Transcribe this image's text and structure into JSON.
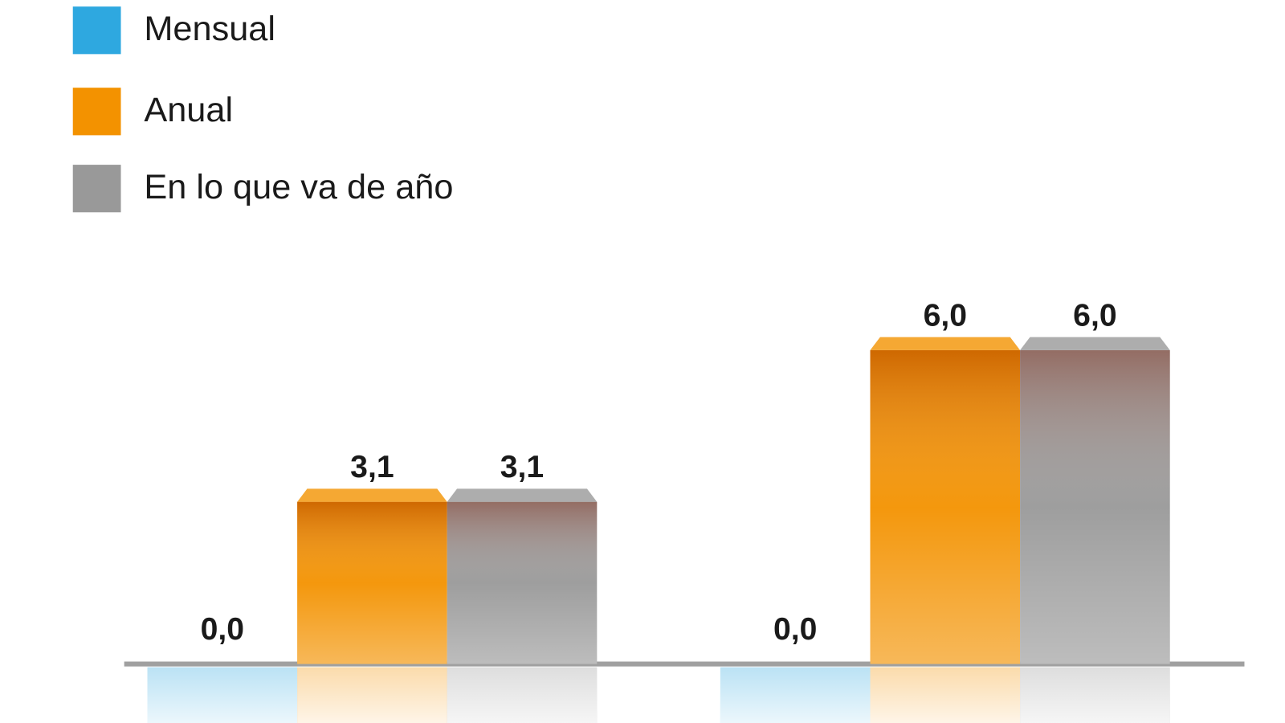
{
  "chart_data": {
    "type": "bar",
    "categories": [
      null,
      null
    ],
    "series": [
      {
        "name": "Mensual",
        "color": "#2ea8e0",
        "values": [
          0.0,
          0.0
        ],
        "value_labels": [
          "0,0",
          "0,0"
        ]
      },
      {
        "name": "Anual",
        "color": "#f39200",
        "values": [
          3.1,
          6.0
        ],
        "value_labels": [
          "3,1",
          "6,0"
        ]
      },
      {
        "name": "En lo que va de año",
        "color": "#999999",
        "values": [
          3.1,
          6.0
        ],
        "value_labels": [
          "3,1",
          "6,0"
        ]
      }
    ],
    "legend": "top-left"
  }
}
